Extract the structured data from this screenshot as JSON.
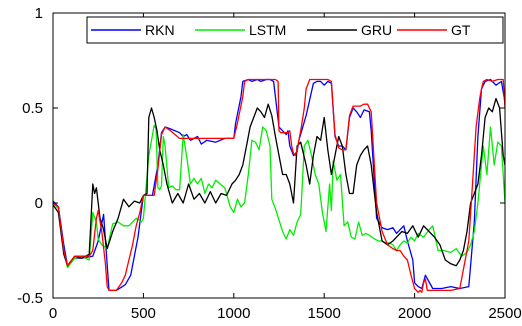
{
  "chart_data": {
    "type": "line",
    "title": "",
    "xlabel": "",
    "ylabel": "",
    "xlim": [
      0,
      2500
    ],
    "ylim": [
      -0.5,
      1
    ],
    "x_ticks": [
      0,
      500,
      1000,
      1500,
      2000,
      2500
    ],
    "x_tick_labels": [
      "0",
      "500",
      "1000",
      "1500",
      "2000",
      "2500"
    ],
    "y_ticks": [
      -0.5,
      0,
      0.5,
      1
    ],
    "y_tick_labels": [
      "-0.5",
      "0",
      "0.5",
      "1"
    ],
    "grid": false,
    "legend_position": "top-right",
    "series": [
      {
        "name": "RKN",
        "color": "#0000ff",
        "x": [
          0,
          30,
          60,
          80,
          120,
          160,
          220,
          250,
          280,
          310,
          350,
          400,
          430,
          470,
          500,
          520,
          550,
          580,
          600,
          620,
          650,
          700,
          720,
          740,
          760,
          800,
          820,
          850,
          900,
          950,
          1000,
          1010,
          1040,
          1050,
          1080,
          1100,
          1130,
          1150,
          1180,
          1200,
          1220,
          1250,
          1270,
          1290,
          1300,
          1310,
          1330,
          1350,
          1360,
          1400,
          1440,
          1460,
          1480,
          1500,
          1520,
          1540,
          1560,
          1580,
          1600,
          1620,
          1640,
          1660,
          1680,
          1700,
          1720,
          1750,
          1760,
          1790,
          1820,
          1850,
          1880,
          1900,
          1940,
          1960,
          1990,
          2000,
          2020,
          2040,
          2060,
          2100,
          2150,
          2200,
          2250,
          2300,
          2330,
          2350,
          2370,
          2390,
          2420,
          2450,
          2480,
          2500
        ],
        "y": [
          0.01,
          -0.02,
          -0.22,
          -0.33,
          -0.29,
          -0.29,
          -0.28,
          -0.2,
          -0.06,
          -0.46,
          -0.46,
          -0.43,
          -0.38,
          -0.18,
          0.04,
          0.04,
          0.04,
          0.2,
          0.37,
          0.4,
          0.39,
          0.37,
          0.35,
          0.36,
          0.33,
          0.35,
          0.31,
          0.33,
          0.32,
          0.34,
          0.34,
          0.42,
          0.56,
          0.64,
          0.65,
          0.64,
          0.65,
          0.64,
          0.65,
          0.65,
          0.64,
          0.4,
          0.38,
          0.36,
          0.38,
          0.3,
          0.25,
          0.27,
          0.33,
          0.46,
          0.63,
          0.64,
          0.64,
          0.62,
          0.64,
          0.63,
          0.35,
          0.3,
          0.3,
          0.28,
          0.45,
          0.5,
          0.48,
          0.45,
          0.49,
          0.48,
          0.38,
          -0.08,
          -0.13,
          -0.14,
          -0.13,
          -0.16,
          -0.12,
          -0.2,
          -0.3,
          -0.42,
          -0.44,
          -0.45,
          -0.38,
          -0.45,
          -0.45,
          -0.44,
          -0.45,
          -0.44,
          -0.1,
          0.35,
          0.6,
          0.64,
          0.65,
          0.62,
          0.64,
          0.53
        ]
      },
      {
        "name": "LSTM",
        "color": "#00ee00",
        "x": [
          0,
          30,
          60,
          80,
          120,
          160,
          200,
          220,
          240,
          250,
          270,
          300,
          330,
          360,
          390,
          420,
          460,
          490,
          500,
          530,
          560,
          570,
          580,
          590,
          600,
          610,
          620,
          640,
          660,
          680,
          700,
          720,
          740,
          760,
          780,
          800,
          820,
          840,
          860,
          880,
          900,
          950,
          980,
          1000,
          1020,
          1040,
          1060,
          1080,
          1100,
          1120,
          1140,
          1160,
          1180,
          1200,
          1210,
          1230,
          1250,
          1270,
          1290,
          1310,
          1330,
          1350,
          1370,
          1390,
          1410,
          1430,
          1450,
          1470,
          1490,
          1510,
          1530,
          1540,
          1550,
          1570,
          1590,
          1610,
          1630,
          1650,
          1670,
          1690,
          1710,
          1730,
          1750,
          1780,
          1800,
          1820,
          1840,
          1860,
          1880,
          1900,
          1920,
          1940,
          1960,
          1980,
          2000,
          2020,
          2050,
          2080,
          2100,
          2130,
          2160,
          2200,
          2230,
          2260,
          2290,
          2310,
          2330,
          2350,
          2360,
          2370,
          2380,
          2400,
          2420,
          2440,
          2460,
          2480,
          2500
        ],
        "y": [
          0.0,
          -0.03,
          -0.25,
          -0.34,
          -0.29,
          -0.28,
          -0.3,
          -0.05,
          -0.1,
          -0.19,
          -0.22,
          -0.24,
          -0.11,
          -0.1,
          -0.12,
          -0.12,
          -0.08,
          -0.1,
          -0.08,
          0.25,
          0.41,
          0.39,
          0.08,
          0.07,
          0.09,
          0.35,
          0.3,
          0.08,
          0.09,
          0.07,
          0.07,
          0.36,
          0.24,
          0.1,
          0.13,
          0.1,
          0.13,
          0.05,
          0.1,
          0.08,
          0.12,
          0.08,
          -0.02,
          -0.05,
          0.02,
          -0.02,
          0.0,
          0.15,
          0.33,
          0.32,
          0.28,
          0.4,
          0.38,
          0.3,
          0.02,
          -0.03,
          -0.09,
          -0.15,
          -0.19,
          -0.14,
          -0.17,
          -0.1,
          -0.06,
          0.3,
          0.33,
          0.25,
          0.15,
          0.1,
          -0.05,
          -0.15,
          0.1,
          -0.04,
          0.22,
          0.12,
          0.15,
          -0.12,
          -0.1,
          -0.18,
          -0.19,
          -0.1,
          -0.17,
          -0.16,
          -0.17,
          -0.19,
          -0.2,
          -0.2,
          -0.21,
          -0.21,
          -0.22,
          -0.25,
          -0.22,
          -0.2,
          -0.21,
          -0.18,
          -0.2,
          -0.16,
          -0.18,
          -0.14,
          -0.12,
          -0.25,
          -0.25,
          -0.26,
          -0.24,
          -0.28,
          -0.26,
          -0.22,
          -0.15,
          0.0,
          0.1,
          0.2,
          0.3,
          0.15,
          0.4,
          0.2,
          0.32,
          0.3,
          0.0
        ]
      },
      {
        "name": "GRU",
        "color": "#000000",
        "x": [
          0,
          30,
          60,
          80,
          120,
          160,
          200,
          220,
          230,
          240,
          260,
          280,
          300,
          330,
          360,
          390,
          420,
          450,
          480,
          500,
          520,
          530,
          545,
          560,
          575,
          590,
          610,
          630,
          660,
          690,
          720,
          750,
          780,
          810,
          840,
          870,
          900,
          930,
          960,
          990,
          1010,
          1030,
          1050,
          1070,
          1090,
          1110,
          1130,
          1150,
          1170,
          1190,
          1210,
          1230,
          1250,
          1270,
          1290,
          1310,
          1330,
          1350,
          1370,
          1400,
          1420,
          1440,
          1460,
          1480,
          1500,
          1520,
          1540,
          1560,
          1580,
          1600,
          1620,
          1640,
          1660,
          1680,
          1700,
          1720,
          1740,
          1760,
          1790,
          1820,
          1850,
          1880,
          1900,
          1930,
          1960,
          1990,
          2020,
          2050,
          2080,
          2110,
          2140,
          2170,
          2200,
          2230,
          2250,
          2270,
          2290,
          2310,
          2330,
          2350,
          2370,
          2390,
          2410,
          2430,
          2450,
          2470,
          2490,
          2500
        ],
        "y": [
          -0.01,
          -0.05,
          -0.27,
          -0.33,
          -0.28,
          -0.29,
          -0.27,
          0.1,
          0.05,
          0.08,
          -0.08,
          -0.14,
          -0.24,
          -0.15,
          -0.08,
          0.02,
          -0.02,
          0.01,
          0.0,
          0.04,
          0.05,
          0.45,
          0.5,
          0.45,
          0.38,
          0.28,
          0.2,
          0.1,
          0.0,
          0.05,
          0.0,
          0.1,
          0.02,
          0.05,
          0.0,
          0.06,
          0.0,
          0.05,
          0.04,
          0.1,
          0.12,
          0.15,
          0.2,
          0.3,
          0.4,
          0.45,
          0.5,
          0.48,
          0.45,
          0.52,
          0.46,
          0.35,
          0.25,
          0.15,
          0.15,
          0.1,
          0.0,
          0.3,
          0.32,
          0.2,
          0.1,
          0.25,
          0.35,
          0.33,
          0.45,
          0.28,
          0.15,
          0.25,
          0.35,
          0.3,
          0.15,
          0.05,
          0.05,
          0.2,
          0.25,
          0.28,
          0.3,
          0.2,
          -0.05,
          -0.2,
          -0.22,
          -0.2,
          -0.18,
          -0.15,
          -0.16,
          -0.12,
          -0.18,
          -0.12,
          -0.15,
          -0.18,
          -0.22,
          -0.3,
          -0.32,
          -0.33,
          -0.3,
          -0.25,
          -0.15,
          0.0,
          0.05,
          0.1,
          0.25,
          0.45,
          0.5,
          0.48,
          0.55,
          0.5,
          0.25,
          0.2
        ]
      },
      {
        "name": "GT",
        "color": "#ff0000",
        "x": [
          0,
          30,
          60,
          80,
          120,
          200,
          220,
          240,
          250,
          270,
          290,
          300,
          310,
          320,
          350,
          380,
          400,
          420,
          440,
          460,
          480,
          500,
          520,
          540,
          560,
          580,
          600,
          620,
          650,
          700,
          750,
          800,
          850,
          900,
          950,
          1000,
          1020,
          1050,
          1060,
          1080,
          1100,
          1130,
          1150,
          1180,
          1200,
          1230,
          1245,
          1250,
          1260,
          1300,
          1310,
          1320,
          1330,
          1340,
          1350,
          1370,
          1390,
          1400,
          1420,
          1440,
          1460,
          1480,
          1500,
          1520,
          1540,
          1560,
          1580,
          1600,
          1620,
          1640,
          1660,
          1680,
          1700,
          1720,
          1740,
          1760,
          1790,
          1820,
          1850,
          1880,
          1900,
          1920,
          1940,
          1960,
          1980,
          2000,
          2020,
          2030,
          2040,
          2050,
          2060,
          2070,
          2100,
          2150,
          2200,
          2250,
          2300,
          2320,
          2340,
          2360,
          2370,
          2380,
          2400,
          2430,
          2460,
          2490,
          2500
        ],
        "y": [
          0.0,
          -0.02,
          -0.25,
          -0.33,
          -0.28,
          -0.28,
          -0.25,
          -0.08,
          -0.04,
          -0.15,
          -0.32,
          -0.44,
          -0.46,
          -0.46,
          -0.46,
          -0.42,
          -0.38,
          -0.3,
          -0.22,
          -0.12,
          -0.05,
          0.04,
          0.04,
          0.04,
          0.04,
          0.18,
          0.36,
          0.4,
          0.38,
          0.34,
          0.34,
          0.34,
          0.34,
          0.34,
          0.34,
          0.34,
          0.42,
          0.56,
          0.64,
          0.65,
          0.65,
          0.65,
          0.65,
          0.65,
          0.65,
          0.65,
          0.64,
          0.38,
          0.37,
          0.37,
          0.38,
          0.3,
          0.26,
          0.25,
          0.28,
          0.38,
          0.5,
          0.6,
          0.65,
          0.65,
          0.65,
          0.65,
          0.65,
          0.65,
          0.64,
          0.36,
          0.29,
          0.28,
          0.28,
          0.46,
          0.51,
          0.51,
          0.51,
          0.52,
          0.52,
          0.48,
          0.0,
          -0.15,
          -0.22,
          -0.24,
          -0.25,
          -0.25,
          -0.28,
          -0.3,
          -0.38,
          -0.45,
          -0.47,
          -0.46,
          -0.47,
          -0.42,
          -0.4,
          -0.46,
          -0.46,
          -0.46,
          -0.46,
          -0.45,
          -0.2,
          0.1,
          0.4,
          0.55,
          0.6,
          0.64,
          0.65,
          0.64,
          0.65,
          0.65,
          0.5
        ]
      }
    ]
  }
}
